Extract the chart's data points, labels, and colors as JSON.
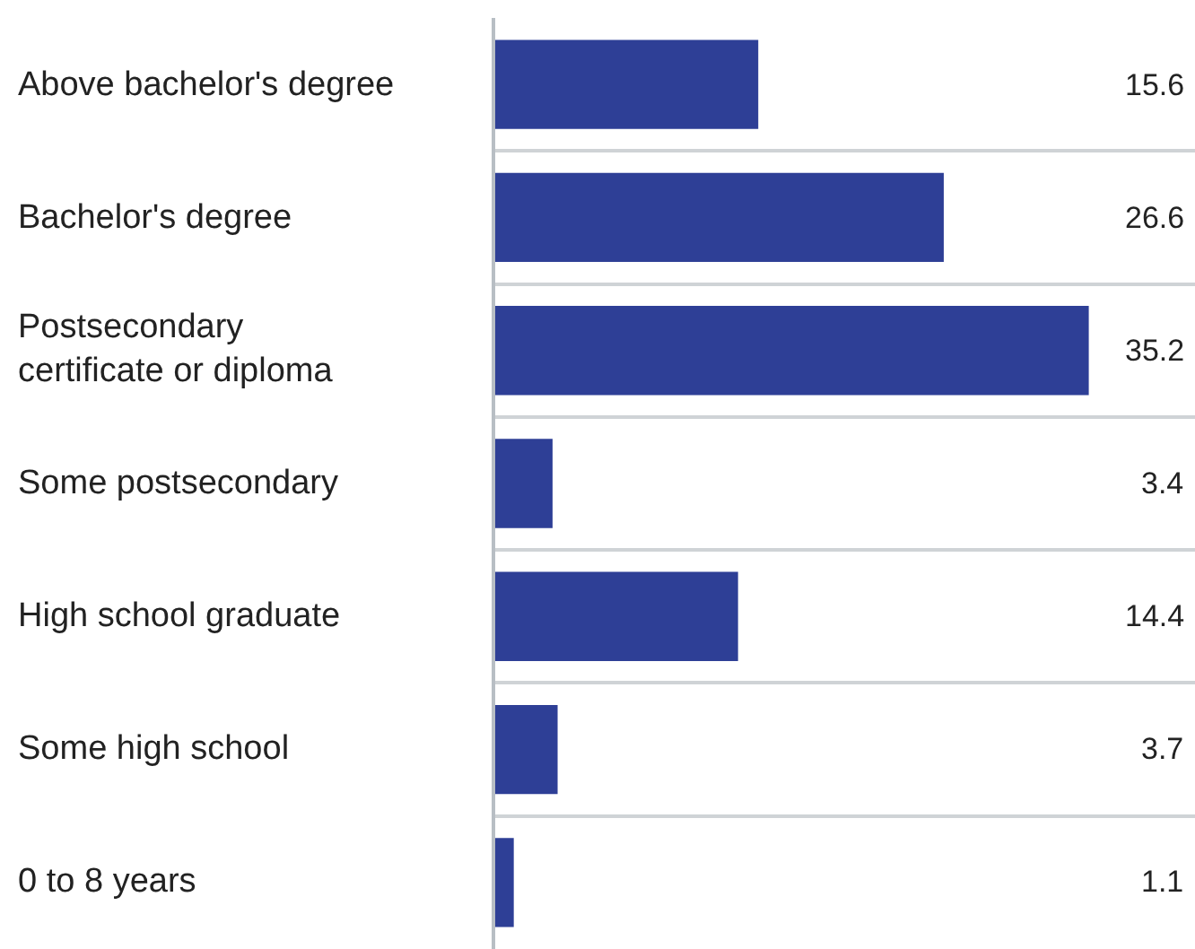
{
  "chart_data": {
    "type": "bar",
    "orientation": "horizontal",
    "categories": [
      "Above bachelor's degree",
      "Bachelor's degree",
      "Postsecondary certificate or diploma",
      "Some postsecondary",
      "High school graduate",
      "Some high school",
      "0 to 8 years"
    ],
    "values": [
      15.6,
      26.6,
      35.2,
      3.4,
      14.4,
      3.7,
      1.1
    ],
    "color": "#2e3f96",
    "data_labels": true,
    "xlim": [
      0,
      41.5
    ],
    "grid": "y",
    "tick_labels": "y",
    "legend": false
  }
}
